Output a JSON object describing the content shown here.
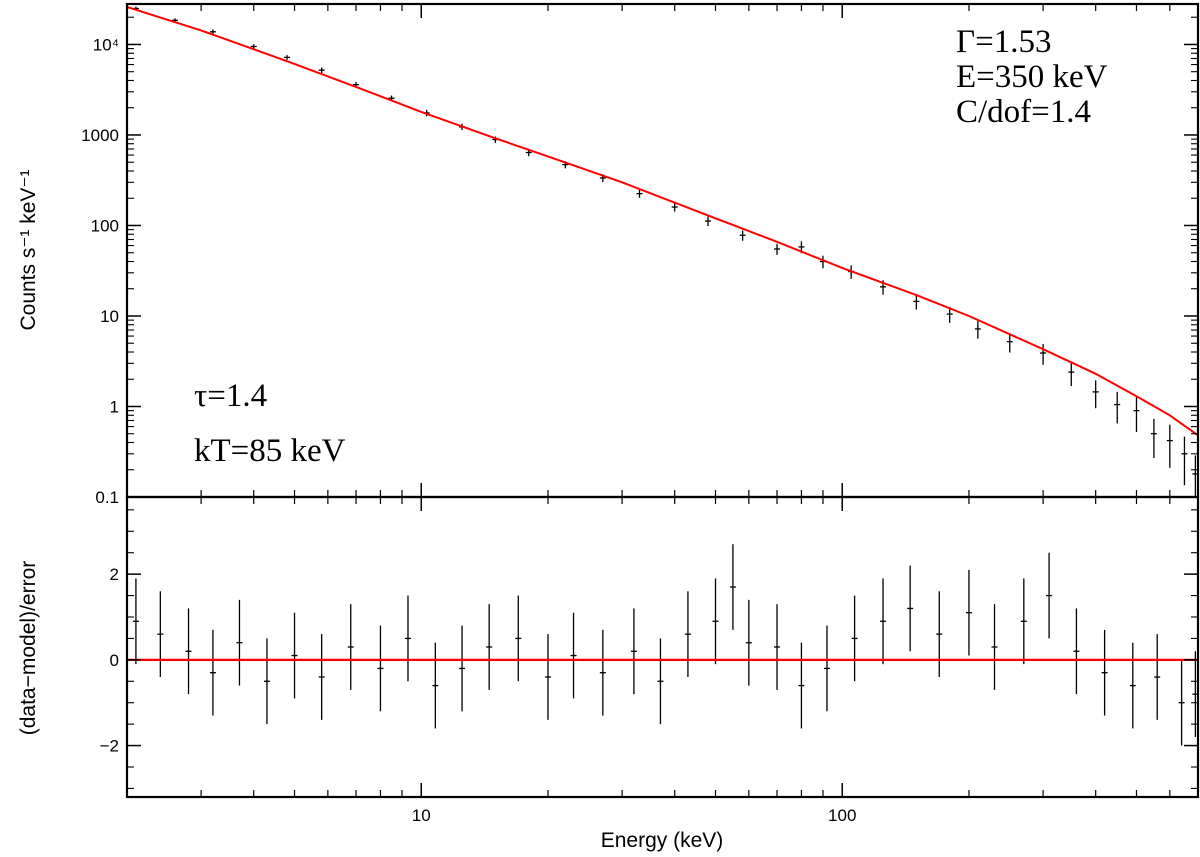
{
  "chart_data": [
    {
      "type": "scatter",
      "panel": "spectrum",
      "title": "",
      "ylabel": "Counts s⁻¹ keV⁻¹",
      "xlabel": "",
      "x_scale": "log",
      "y_scale": "log",
      "xlim": [
        2,
        700
      ],
      "ylim": [
        0.1,
        28000
      ],
      "y_ticks": [
        {
          "value": 0.1,
          "label": "0.1"
        },
        {
          "value": 1,
          "label": "1"
        },
        {
          "value": 10,
          "label": "10"
        },
        {
          "value": 100,
          "label": "100"
        },
        {
          "value": 1000,
          "label": "1000"
        },
        {
          "value": 10000,
          "label": "10⁴"
        }
      ],
      "series": [
        {
          "name": "model",
          "style": "line",
          "color": "#ff0000",
          "x": [
            2,
            3,
            5,
            7,
            10,
            15,
            20,
            30,
            50,
            70,
            100,
            150,
            200,
            300,
            400,
            500,
            600,
            700
          ],
          "y": [
            26000,
            14300,
            6100,
            3400,
            1800,
            920,
            580,
            300,
            120,
            66,
            34,
            17,
            10,
            4.3,
            2.3,
            1.3,
            0.8,
            0.48
          ]
        },
        {
          "name": "data",
          "style": "points with error bars",
          "color": "#000000",
          "x": [
            2.1,
            2.6,
            3.2,
            4.0,
            4.8,
            5.8,
            7.0,
            8.5,
            10.3,
            12.5,
            15.0,
            18.0,
            22.0,
            27.0,
            33.0,
            40.0,
            48.0,
            58.0,
            70.0,
            80.0,
            90.0,
            105.0,
            125.0,
            150.0,
            180.0,
            210.0,
            250.0,
            300.0,
            350.0,
            400.0,
            450.0,
            500.0,
            550.0,
            600.0,
            650.0,
            690.0
          ],
          "y": [
            25000,
            18500,
            13800,
            9500,
            7200,
            5200,
            3600,
            2550,
            1750,
            1230,
            890,
            640,
            470,
            335,
            225,
            160,
            112,
            78,
            55,
            58,
            40,
            31,
            21,
            14.5,
            10.5,
            7.2,
            5.2,
            3.9,
            2.4,
            1.45,
            1.05,
            0.9,
            0.5,
            0.42,
            0.3,
            0.18
          ],
          "yerr_frac": [
            0.05,
            0.05,
            0.06,
            0.06,
            0.06,
            0.07,
            0.07,
            0.07,
            0.08,
            0.08,
            0.08,
            0.09,
            0.09,
            0.1,
            0.1,
            0.11,
            0.12,
            0.13,
            0.14,
            0.15,
            0.16,
            0.17,
            0.18,
            0.19,
            0.2,
            0.22,
            0.24,
            0.26,
            0.3,
            0.34,
            0.38,
            0.42,
            0.46,
            0.5,
            0.55,
            0.6
          ]
        }
      ]
    },
    {
      "type": "scatter",
      "panel": "residuals",
      "title": "",
      "ylabel": "(data−model)/error",
      "xlabel": "Energy (keV)",
      "x_scale": "log",
      "y_scale": "linear",
      "xlim": [
        2,
        700
      ],
      "ylim": [
        -3.2,
        3.8
      ],
      "y_ticks": [
        {
          "value": -2,
          "label": "−2"
        },
        {
          "value": 0,
          "label": "0"
        },
        {
          "value": 2,
          "label": "2"
        }
      ],
      "x_ticks": [
        {
          "value": 10,
          "label": "10"
        },
        {
          "value": 100,
          "label": "100"
        }
      ],
      "series": [
        {
          "name": "zero line",
          "style": "line",
          "color": "#ff0000",
          "x": [
            2,
            700
          ],
          "y": [
            0,
            0
          ]
        },
        {
          "name": "residuals",
          "style": "points with error bars",
          "color": "#000000",
          "yerr": 1,
          "x": [
            2.1,
            2.4,
            2.8,
            3.2,
            3.7,
            4.3,
            5.0,
            5.8,
            6.8,
            8.0,
            9.3,
            10.8,
            12.5,
            14.5,
            17.0,
            20.0,
            23.0,
            27.0,
            32.0,
            37.0,
            43.0,
            50.0,
            55.0,
            60.0,
            70.0,
            80.0,
            92.0,
            107.0,
            125.0,
            145.0,
            170.0,
            200.0,
            230.0,
            270.0,
            310.0,
            360.0,
            420.0,
            490.0,
            560.0,
            640.0,
            690.0
          ],
          "y": [
            0.9,
            0.6,
            0.2,
            -0.3,
            0.4,
            -0.5,
            0.1,
            -0.4,
            0.3,
            -0.2,
            0.5,
            -0.6,
            -0.2,
            0.3,
            0.5,
            -0.4,
            0.1,
            -0.3,
            0.2,
            -0.5,
            0.6,
            0.9,
            1.7,
            0.4,
            0.3,
            -0.6,
            -0.2,
            0.5,
            0.9,
            1.2,
            0.6,
            1.1,
            0.3,
            0.9,
            1.5,
            0.2,
            -0.3,
            -0.6,
            -0.4,
            -1.0,
            -0.8
          ]
        }
      ]
    }
  ],
  "annotations": {
    "gamma": "Γ=1.53",
    "energy": "E=350 keV",
    "cstat": "C/dof=1.4",
    "tau": "τ=1.4",
    "kt": "kT=85 keV"
  }
}
